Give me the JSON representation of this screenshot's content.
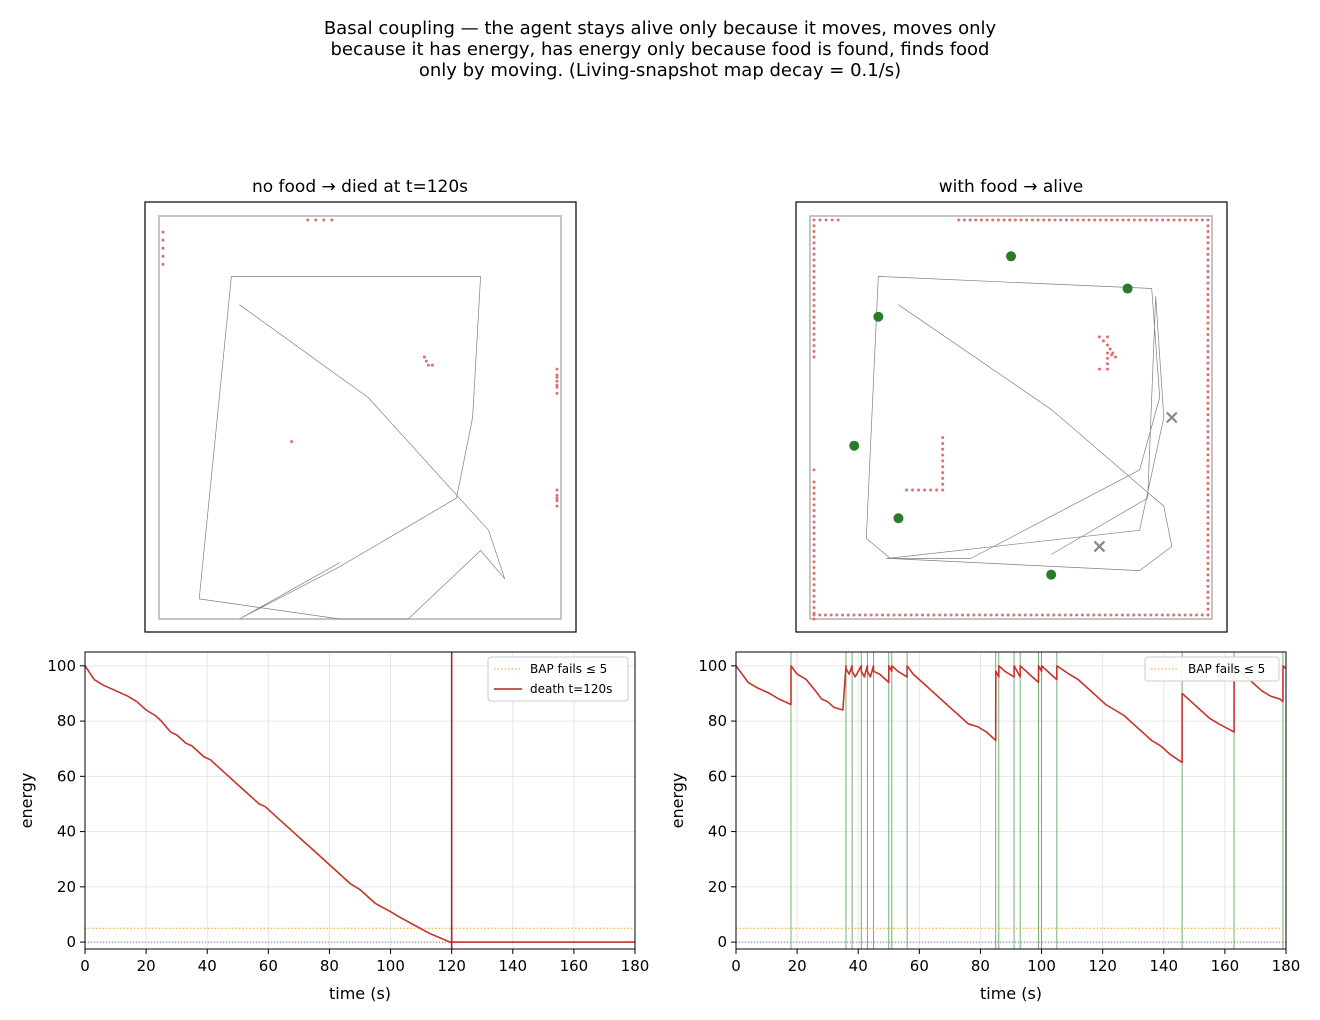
{
  "figure": {
    "suptitle_lines": [
      "Basal coupling — the agent stays alive only because it moves, moves only",
      "because it has energy, has energy only because food is found, finds food",
      "only by moving.   (Living-snapshot map decay = 0.1/s)"
    ]
  },
  "colors": {
    "energy_line": "#c8332b",
    "death_line": "#b22222",
    "threshold_line": "#f0a020",
    "food_marker": "#2a7a2a",
    "food_event_line": "#4a9a4a",
    "wall_dot": "#e07070",
    "trajectory": "#808080",
    "arena_border": "#b0b0b0",
    "grid": "#e6e6e6"
  },
  "chart_data": [
    {
      "type": "map",
      "title": "no food → died at t=120s",
      "xlim": [
        0,
        1
      ],
      "ylim": [
        0,
        1
      ],
      "trajectory": [
        [
          0.2,
          0.78
        ],
        [
          0.52,
          0.55
        ],
        [
          0.82,
          0.22
        ],
        [
          0.86,
          0.1
        ],
        [
          0.8,
          0.17
        ],
        [
          0.62,
          0.0
        ],
        [
          0.45,
          0.0
        ],
        [
          0.1,
          0.05
        ],
        [
          0.18,
          0.85
        ],
        [
          0.8,
          0.85
        ],
        [
          0.78,
          0.5
        ],
        [
          0.74,
          0.3
        ],
        [
          0.45,
          0.13
        ],
        [
          0.2,
          0.0
        ],
        [
          0.45,
          0.14
        ]
      ],
      "walls": [
        {
          "points": [
            [
              0.37,
              0.99
            ],
            [
              0.39,
              0.99
            ],
            [
              0.41,
              0.99
            ],
            [
              0.43,
              0.99
            ]
          ]
        },
        {
          "points": [
            [
              0.01,
              0.88
            ],
            [
              0.01,
              0.9
            ],
            [
              0.01,
              0.92
            ],
            [
              0.01,
              0.94
            ],
            [
              0.01,
              0.96
            ]
          ]
        },
        {
          "points": [
            [
              0.66,
              0.65
            ],
            [
              0.67,
              0.63
            ],
            [
              0.68,
              0.63
            ]
          ]
        },
        {
          "points": [
            [
              0.99,
              0.6
            ],
            [
              0.99,
              0.58
            ],
            [
              0.99,
              0.56
            ],
            [
              0.99,
              0.62
            ]
          ]
        },
        {
          "points": [
            [
              0.33,
              0.44
            ]
          ]
        },
        {
          "points": [
            [
              0.99,
              0.3
            ],
            [
              0.99,
              0.32
            ],
            [
              0.99,
              0.28
            ]
          ]
        }
      ],
      "food": [],
      "consumed": []
    },
    {
      "type": "map",
      "title": "with food → alive",
      "xlim": [
        0,
        1
      ],
      "ylim": [
        0,
        1
      ],
      "trajectory": [
        [
          0.22,
          0.78
        ],
        [
          0.6,
          0.52
        ],
        [
          0.88,
          0.28
        ],
        [
          0.9,
          0.18
        ],
        [
          0.82,
          0.12
        ],
        [
          0.2,
          0.15
        ],
        [
          0.14,
          0.2
        ],
        [
          0.17,
          0.85
        ],
        [
          0.85,
          0.82
        ],
        [
          0.87,
          0.55
        ],
        [
          0.82,
          0.37
        ],
        [
          0.4,
          0.15
        ],
        [
          0.19,
          0.15
        ],
        [
          0.82,
          0.22
        ],
        [
          0.88,
          0.5
        ],
        [
          0.86,
          0.8
        ],
        [
          0.84,
          0.3
        ],
        [
          0.6,
          0.16
        ]
      ],
      "walls": [
        {
          "points": [
            [
              0.01,
              0.01
            ],
            [
              0.99,
              0.01
            ],
            [
              0.99,
              0.99
            ],
            [
              0.37,
              0.99
            ]
          ]
        },
        {
          "points": [
            [
              0.01,
              0.65
            ],
            [
              0.01,
              0.99
            ],
            [
              0.07,
              0.99
            ]
          ]
        },
        {
          "points": [
            [
              0.01,
              0.37
            ]
          ]
        },
        {
          "points": [
            [
              0.01,
              0.0
            ],
            [
              0.01,
              0.34
            ]
          ]
        },
        {
          "points": [
            [
              0.24,
              0.32
            ],
            [
              0.33,
              0.32
            ],
            [
              0.33,
              0.45
            ]
          ]
        },
        {
          "points": [
            [
              0.72,
              0.62
            ],
            [
              0.74,
              0.62
            ],
            [
              0.74,
              0.66
            ],
            [
              0.76,
              0.65
            ],
            [
              0.74,
              0.68
            ],
            [
              0.72,
              0.7
            ],
            [
              0.74,
              0.7
            ]
          ]
        }
      ],
      "food": [
        [
          0.5,
          0.9
        ],
        [
          0.79,
          0.82
        ],
        [
          0.17,
          0.75
        ],
        [
          0.11,
          0.43
        ],
        [
          0.22,
          0.25
        ],
        [
          0.6,
          0.11
        ]
      ],
      "consumed": [
        [
          0.9,
          0.5
        ],
        [
          0.72,
          0.18
        ]
      ]
    },
    {
      "type": "line",
      "xlabel": "time (s)",
      "ylabel": "energy",
      "xlim": [
        0,
        180
      ],
      "ylim": [
        -2.5,
        105
      ],
      "xticks": [
        0,
        20,
        40,
        60,
        80,
        100,
        120,
        140,
        160,
        180
      ],
      "yticks": [
        0,
        20,
        40,
        60,
        80,
        100
      ],
      "grid": true,
      "legend_placement": "top-right",
      "legend": [
        "BAP fails ≤ 5",
        "death t=120s"
      ],
      "threshold": 5,
      "death_t": 120,
      "food_events": [],
      "series": [
        {
          "x": [
            0,
            3,
            6,
            10,
            14,
            17,
            20,
            23,
            25,
            28,
            30,
            33,
            35,
            39,
            41,
            45,
            47,
            51,
            53,
            57,
            59,
            63,
            65,
            69,
            71,
            75,
            77,
            81,
            83,
            87,
            90,
            93,
            95,
            100,
            103,
            108,
            113,
            119.5,
            120,
            180
          ],
          "values": [
            100,
            95,
            93,
            91,
            89,
            87,
            84,
            82,
            80,
            76,
            75,
            72,
            71,
            67,
            66,
            62,
            60,
            56,
            54,
            50,
            49,
            45,
            43,
            39,
            37,
            33,
            31,
            27,
            25,
            21,
            19,
            16,
            14,
            11,
            9,
            6,
            3,
            0,
            0,
            0
          ]
        }
      ]
    },
    {
      "type": "line",
      "xlabel": "time (s)",
      "ylabel": "energy",
      "xlim": [
        0,
        180
      ],
      "ylim": [
        -2.5,
        105
      ],
      "xticks": [
        0,
        20,
        40,
        60,
        80,
        100,
        120,
        140,
        160,
        180
      ],
      "yticks": [
        0,
        20,
        40,
        60,
        80,
        100
      ],
      "grid": true,
      "legend_placement": "top-right",
      "legend": [
        "BAP fails ≤ 5"
      ],
      "threshold": 5,
      "food_events": [
        18,
        36,
        38,
        41,
        43,
        45,
        50,
        51,
        56,
        85,
        86,
        91,
        93,
        99,
        100,
        105,
        146,
        163,
        179
      ],
      "series": [
        {
          "x": [
            0,
            2,
            4,
            7,
            11,
            14,
            18,
            18.01,
            20,
            23,
            26,
            28,
            30,
            32,
            35,
            36,
            36.01,
            37,
            38,
            38.01,
            39,
            41,
            41.01,
            42,
            43,
            43.01,
            44,
            45,
            45.01,
            47,
            50,
            50.01,
            51,
            51.01,
            53,
            56,
            56.01,
            58,
            61,
            64,
            67,
            70,
            73,
            76,
            79,
            82,
            85,
            85.01,
            86,
            86.01,
            88,
            91,
            91.01,
            92,
            93,
            93.01,
            96,
            99,
            99.01,
            100,
            100.01,
            103,
            105,
            105.01,
            109,
            112,
            115,
            118,
            121,
            124,
            127,
            130,
            133,
            136,
            139,
            142,
            146,
            146.01,
            149,
            152,
            155,
            158,
            163,
            163.01,
            166,
            169,
            172,
            175,
            178,
            179,
            179.01,
            180
          ],
          "values": [
            100,
            97,
            94,
            92,
            90,
            88,
            86,
            100,
            97,
            95,
            91,
            88,
            87,
            85,
            84,
            100,
            99,
            97,
            100,
            98,
            96,
            100,
            98,
            96,
            100,
            98,
            96,
            100,
            98,
            97,
            94,
            100,
            98,
            100,
            98,
            96,
            100,
            97,
            94,
            91,
            88,
            85,
            82,
            79,
            78,
            76,
            73,
            98,
            96,
            100,
            98,
            96,
            100,
            98,
            96,
            100,
            97,
            94,
            100,
            98,
            100,
            97,
            95,
            100,
            97,
            95,
            92,
            89,
            86,
            84,
            82,
            79,
            76,
            73,
            71,
            68,
            65,
            90,
            87,
            84,
            81,
            79,
            76,
            100,
            97,
            94,
            91,
            89,
            88,
            87,
            100,
            99
          ]
        }
      ]
    }
  ]
}
